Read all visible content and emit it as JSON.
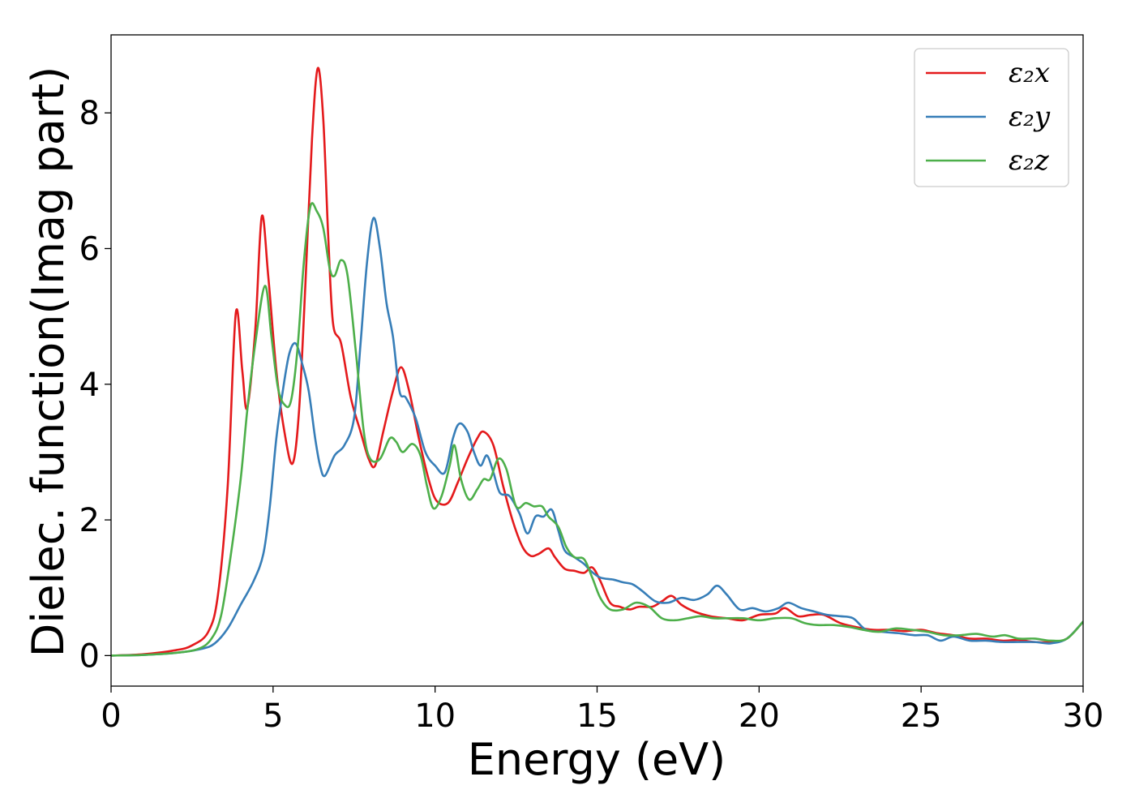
{
  "chart_data": {
    "type": "line",
    "title": "",
    "xlabel": "Energy (eV)",
    "ylabel": "Dielec. function(Imag part)",
    "xlim": [
      0,
      30
    ],
    "ylim": [
      -0.45,
      9.15
    ],
    "xticks": [
      0,
      5,
      10,
      15,
      20,
      25,
      30
    ],
    "yticks": [
      0,
      2,
      4,
      6,
      8
    ],
    "grid": false,
    "legend": "top-right",
    "series": [
      {
        "name": "ε₂x",
        "color": "#e41a1c",
        "points": [
          [
            0,
            0
          ],
          [
            1,
            0.02
          ],
          [
            2,
            0.08
          ],
          [
            2.5,
            0.15
          ],
          [
            3,
            0.35
          ],
          [
            3.3,
            0.9
          ],
          [
            3.6,
            2.5
          ],
          [
            3.85,
            5.05
          ],
          [
            4.05,
            4.2
          ],
          [
            4.2,
            3.65
          ],
          [
            4.45,
            4.8
          ],
          [
            4.65,
            6.47
          ],
          [
            4.85,
            5.6
          ],
          [
            5.1,
            4.2
          ],
          [
            5.35,
            3.3
          ],
          [
            5.6,
            2.83
          ],
          [
            5.8,
            3.6
          ],
          [
            6.0,
            5.5
          ],
          [
            6.2,
            7.6
          ],
          [
            6.38,
            8.66
          ],
          [
            6.55,
            7.9
          ],
          [
            6.7,
            6.2
          ],
          [
            6.85,
            4.9
          ],
          [
            7.1,
            4.6
          ],
          [
            7.4,
            3.8
          ],
          [
            7.7,
            3.3
          ],
          [
            7.95,
            2.9
          ],
          [
            8.15,
            2.8
          ],
          [
            8.4,
            3.3
          ],
          [
            8.7,
            3.9
          ],
          [
            8.95,
            4.25
          ],
          [
            9.2,
            3.9
          ],
          [
            9.5,
            3.2
          ],
          [
            9.8,
            2.6
          ],
          [
            10.05,
            2.28
          ],
          [
            10.4,
            2.25
          ],
          [
            10.7,
            2.55
          ],
          [
            11.0,
            2.9
          ],
          [
            11.3,
            3.2
          ],
          [
            11.5,
            3.3
          ],
          [
            11.8,
            3.1
          ],
          [
            12.1,
            2.5
          ],
          [
            12.4,
            1.98
          ],
          [
            12.7,
            1.6
          ],
          [
            12.95,
            1.47
          ],
          [
            13.2,
            1.5
          ],
          [
            13.5,
            1.58
          ],
          [
            13.7,
            1.45
          ],
          [
            14.0,
            1.28
          ],
          [
            14.3,
            1.25
          ],
          [
            14.6,
            1.22
          ],
          [
            14.85,
            1.3
          ],
          [
            15.1,
            1.1
          ],
          [
            15.4,
            0.78
          ],
          [
            15.7,
            0.72
          ],
          [
            16.0,
            0.68
          ],
          [
            16.3,
            0.72
          ],
          [
            16.7,
            0.72
          ],
          [
            17.0,
            0.8
          ],
          [
            17.3,
            0.88
          ],
          [
            17.6,
            0.75
          ],
          [
            18.0,
            0.65
          ],
          [
            18.5,
            0.58
          ],
          [
            19.0,
            0.55
          ],
          [
            19.5,
            0.52
          ],
          [
            20.0,
            0.6
          ],
          [
            20.5,
            0.62
          ],
          [
            20.8,
            0.7
          ],
          [
            21.2,
            0.58
          ],
          [
            21.6,
            0.6
          ],
          [
            22.0,
            0.6
          ],
          [
            22.5,
            0.48
          ],
          [
            23.0,
            0.42
          ],
          [
            23.5,
            0.38
          ],
          [
            24.0,
            0.38
          ],
          [
            24.5,
            0.36
          ],
          [
            25.0,
            0.38
          ],
          [
            25.5,
            0.33
          ],
          [
            26.0,
            0.3
          ],
          [
            26.5,
            0.25
          ],
          [
            27.0,
            0.25
          ],
          [
            27.5,
            0.22
          ],
          [
            28.0,
            0.23
          ],
          [
            28.5,
            0.2
          ],
          [
            29.0,
            0.2
          ],
          [
            29.5,
            0.25
          ],
          [
            30.0,
            0.5
          ]
        ]
      },
      {
        "name": "ε₂y",
        "color": "#377eb8",
        "points": [
          [
            0,
            0
          ],
          [
            1,
            0.01
          ],
          [
            2,
            0.04
          ],
          [
            2.8,
            0.1
          ],
          [
            3.2,
            0.18
          ],
          [
            3.6,
            0.4
          ],
          [
            4.0,
            0.75
          ],
          [
            4.4,
            1.1
          ],
          [
            4.7,
            1.5
          ],
          [
            4.9,
            2.2
          ],
          [
            5.1,
            3.2
          ],
          [
            5.3,
            3.9
          ],
          [
            5.5,
            4.45
          ],
          [
            5.7,
            4.6
          ],
          [
            5.9,
            4.3
          ],
          [
            6.1,
            3.9
          ],
          [
            6.3,
            3.2
          ],
          [
            6.45,
            2.8
          ],
          [
            6.6,
            2.65
          ],
          [
            6.9,
            2.95
          ],
          [
            7.2,
            3.1
          ],
          [
            7.5,
            3.5
          ],
          [
            7.7,
            4.6
          ],
          [
            7.9,
            5.8
          ],
          [
            8.1,
            6.45
          ],
          [
            8.3,
            6.0
          ],
          [
            8.5,
            5.2
          ],
          [
            8.7,
            4.7
          ],
          [
            8.9,
            3.9
          ],
          [
            9.1,
            3.8
          ],
          [
            9.4,
            3.5
          ],
          [
            9.7,
            3.0
          ],
          [
            10.0,
            2.8
          ],
          [
            10.3,
            2.7
          ],
          [
            10.55,
            3.2
          ],
          [
            10.75,
            3.42
          ],
          [
            11.0,
            3.3
          ],
          [
            11.2,
            3.0
          ],
          [
            11.4,
            2.8
          ],
          [
            11.6,
            2.95
          ],
          [
            11.8,
            2.7
          ],
          [
            12.0,
            2.4
          ],
          [
            12.3,
            2.35
          ],
          [
            12.6,
            2.1
          ],
          [
            12.85,
            1.8
          ],
          [
            13.1,
            2.05
          ],
          [
            13.35,
            2.05
          ],
          [
            13.6,
            2.15
          ],
          [
            13.8,
            1.85
          ],
          [
            14.0,
            1.55
          ],
          [
            14.3,
            1.45
          ],
          [
            14.6,
            1.35
          ],
          [
            14.8,
            1.25
          ],
          [
            15.1,
            1.15
          ],
          [
            15.5,
            1.12
          ],
          [
            15.8,
            1.08
          ],
          [
            16.1,
            1.05
          ],
          [
            16.4,
            0.95
          ],
          [
            16.8,
            0.8
          ],
          [
            17.2,
            0.78
          ],
          [
            17.6,
            0.85
          ],
          [
            18.0,
            0.82
          ],
          [
            18.4,
            0.9
          ],
          [
            18.7,
            1.03
          ],
          [
            19.0,
            0.9
          ],
          [
            19.4,
            0.68
          ],
          [
            19.8,
            0.7
          ],
          [
            20.2,
            0.65
          ],
          [
            20.6,
            0.7
          ],
          [
            20.9,
            0.78
          ],
          [
            21.3,
            0.7
          ],
          [
            21.7,
            0.65
          ],
          [
            22.1,
            0.6
          ],
          [
            22.5,
            0.58
          ],
          [
            22.9,
            0.55
          ],
          [
            23.3,
            0.38
          ],
          [
            23.8,
            0.35
          ],
          [
            24.3,
            0.33
          ],
          [
            24.8,
            0.3
          ],
          [
            25.2,
            0.3
          ],
          [
            25.6,
            0.22
          ],
          [
            26.0,
            0.28
          ],
          [
            26.5,
            0.22
          ],
          [
            27.0,
            0.22
          ],
          [
            27.5,
            0.2
          ],
          [
            28.0,
            0.2
          ],
          [
            28.5,
            0.2
          ],
          [
            29.0,
            0.18
          ],
          [
            29.5,
            0.25
          ],
          [
            30.0,
            0.5
          ]
        ]
      },
      {
        "name": "ε₂z",
        "color": "#4daf4a",
        "points": [
          [
            0,
            0
          ],
          [
            1,
            0.01
          ],
          [
            2,
            0.04
          ],
          [
            2.7,
            0.1
          ],
          [
            3.1,
            0.25
          ],
          [
            3.4,
            0.6
          ],
          [
            3.7,
            1.5
          ],
          [
            4.0,
            2.6
          ],
          [
            4.2,
            3.6
          ],
          [
            4.45,
            4.6
          ],
          [
            4.75,
            5.45
          ],
          [
            4.95,
            4.7
          ],
          [
            5.15,
            3.95
          ],
          [
            5.35,
            3.7
          ],
          [
            5.55,
            3.75
          ],
          [
            5.75,
            4.5
          ],
          [
            5.95,
            5.8
          ],
          [
            6.15,
            6.62
          ],
          [
            6.35,
            6.55
          ],
          [
            6.55,
            6.3
          ],
          [
            6.75,
            5.7
          ],
          [
            6.9,
            5.6
          ],
          [
            7.1,
            5.83
          ],
          [
            7.3,
            5.6
          ],
          [
            7.55,
            4.5
          ],
          [
            7.8,
            3.3
          ],
          [
            8.0,
            2.9
          ],
          [
            8.3,
            2.9
          ],
          [
            8.6,
            3.2
          ],
          [
            8.8,
            3.15
          ],
          [
            9.0,
            3.0
          ],
          [
            9.3,
            3.12
          ],
          [
            9.55,
            2.95
          ],
          [
            9.75,
            2.5
          ],
          [
            9.95,
            2.17
          ],
          [
            10.2,
            2.35
          ],
          [
            10.45,
            2.8
          ],
          [
            10.6,
            3.1
          ],
          [
            10.8,
            2.6
          ],
          [
            11.05,
            2.3
          ],
          [
            11.3,
            2.45
          ],
          [
            11.5,
            2.6
          ],
          [
            11.7,
            2.6
          ],
          [
            11.95,
            2.9
          ],
          [
            12.2,
            2.75
          ],
          [
            12.5,
            2.2
          ],
          [
            12.8,
            2.25
          ],
          [
            13.05,
            2.2
          ],
          [
            13.3,
            2.2
          ],
          [
            13.5,
            2.05
          ],
          [
            13.8,
            1.9
          ],
          [
            14.05,
            1.6
          ],
          [
            14.3,
            1.45
          ],
          [
            14.6,
            1.42
          ],
          [
            14.85,
            1.15
          ],
          [
            15.1,
            0.85
          ],
          [
            15.4,
            0.68
          ],
          [
            15.8,
            0.68
          ],
          [
            16.2,
            0.78
          ],
          [
            16.6,
            0.72
          ],
          [
            17.0,
            0.55
          ],
          [
            17.4,
            0.52
          ],
          [
            17.8,
            0.55
          ],
          [
            18.2,
            0.58
          ],
          [
            18.6,
            0.55
          ],
          [
            19.0,
            0.55
          ],
          [
            19.5,
            0.55
          ],
          [
            20.0,
            0.52
          ],
          [
            20.5,
            0.55
          ],
          [
            21.0,
            0.55
          ],
          [
            21.4,
            0.48
          ],
          [
            21.8,
            0.45
          ],
          [
            22.3,
            0.45
          ],
          [
            22.8,
            0.42
          ],
          [
            23.2,
            0.38
          ],
          [
            23.7,
            0.35
          ],
          [
            24.2,
            0.4
          ],
          [
            24.7,
            0.38
          ],
          [
            25.2,
            0.35
          ],
          [
            25.7,
            0.3
          ],
          [
            26.2,
            0.3
          ],
          [
            26.7,
            0.32
          ],
          [
            27.2,
            0.28
          ],
          [
            27.6,
            0.3
          ],
          [
            28.0,
            0.25
          ],
          [
            28.5,
            0.25
          ],
          [
            29.0,
            0.22
          ],
          [
            29.5,
            0.25
          ],
          [
            30.0,
            0.5
          ]
        ]
      }
    ]
  }
}
